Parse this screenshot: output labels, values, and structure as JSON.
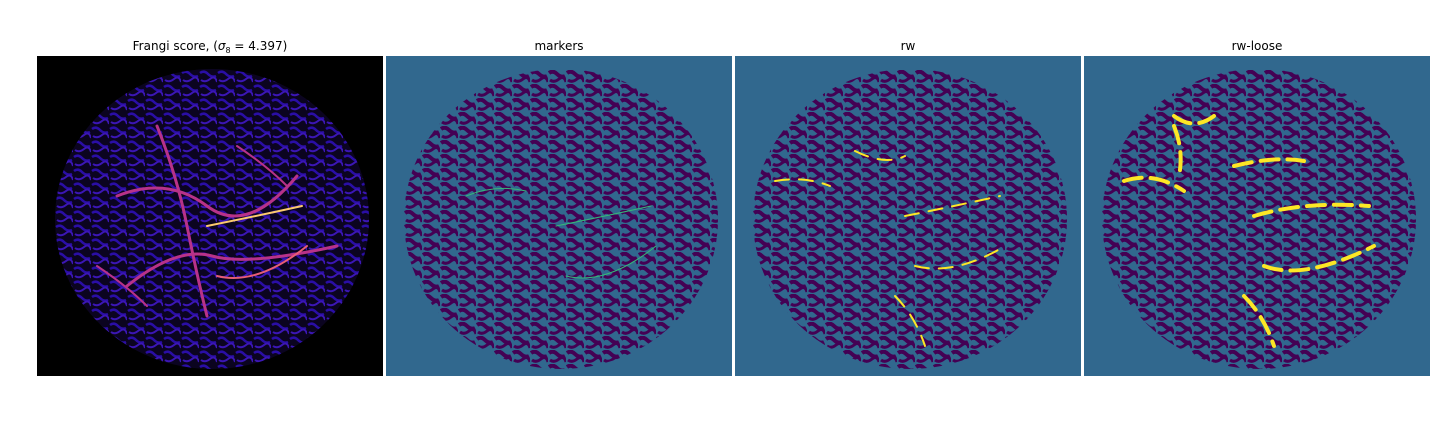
{
  "figure": {
    "panels": [
      {
        "title_prefix": "Frangi score, (",
        "title_symbol": "σ",
        "title_subscript": "8",
        "title_suffix": " = 4.397)",
        "colormap": "magma",
        "background": "#000000"
      },
      {
        "title": "markers",
        "colormap": "viridis",
        "background": "#31688e"
      },
      {
        "title": "rw",
        "colormap": "viridis",
        "background": "#31688e"
      },
      {
        "title": "rw-loose",
        "colormap": "viridis",
        "background": "#31688e"
      }
    ],
    "colors": {
      "vessel_low": "#2a0ea6",
      "vessel_mid": "#b83289",
      "vessel_high": "#fcca6e",
      "tissue_dark": "#440154",
      "tissue_bg": "#31688e",
      "marker_teal": "#35b779",
      "segment_yellow": "#fde725"
    }
  }
}
